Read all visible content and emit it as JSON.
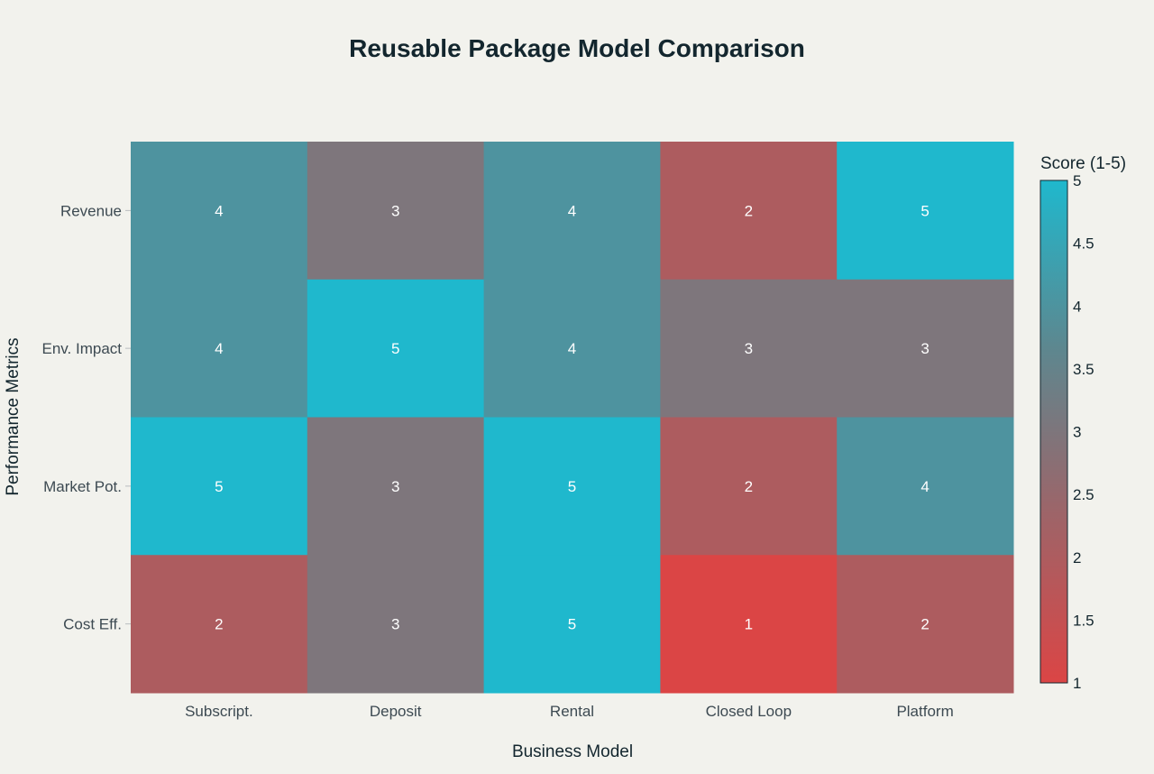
{
  "chart_data": {
    "type": "heatmap",
    "title": "Reusable Package Model Comparison",
    "xlabel": "Business Model",
    "ylabel": "Performance Metrics",
    "x_categories": [
      "Subscript.",
      "Deposit",
      "Rental",
      "Closed Loop",
      "Platform"
    ],
    "y_categories": [
      "Revenue",
      "Env. Impact",
      "Market Pot.",
      "Cost Eff."
    ],
    "z": [
      [
        4,
        3,
        4,
        2,
        5
      ],
      [
        4,
        5,
        4,
        3,
        3
      ],
      [
        5,
        3,
        5,
        2,
        4
      ],
      [
        2,
        3,
        5,
        1,
        2
      ]
    ],
    "colorbar": {
      "title": "Score (1-5)",
      "range": [
        1,
        5
      ],
      "ticks": [
        "1",
        "1.5",
        "2",
        "2.5",
        "3",
        "3.5",
        "4",
        "4.5",
        "5"
      ],
      "colorscale": [
        "#db4545",
        "#9e6468",
        "#5d878f",
        "#1fb8cd"
      ]
    },
    "legend": "right"
  }
}
